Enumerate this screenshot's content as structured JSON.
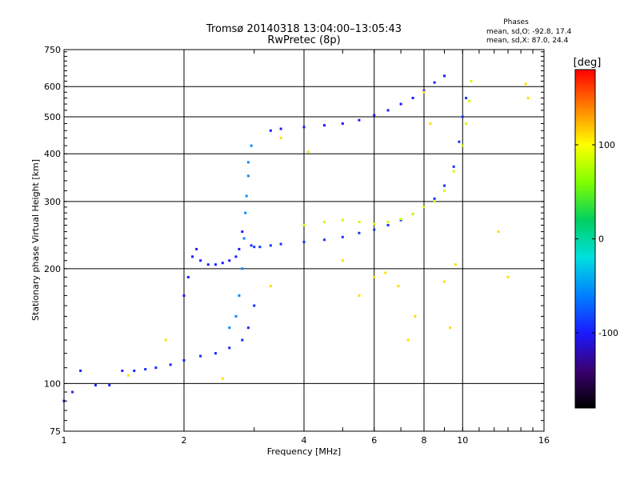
{
  "header": {
    "title_line1": "Tromsø 20140318 13:04:00–13:05:43",
    "title_line2": "RwPretec (8p)",
    "phase_heading": "Phases",
    "phase_o": "mean, sd,O: -92.8, 17.4",
    "phase_x": "mean, sd,X:  87.0, 24.4"
  },
  "colorbar": {
    "unit": "[deg]",
    "tick_labels": [
      "100",
      "0",
      "-100"
    ],
    "tick_values": [
      100,
      0,
      -100
    ],
    "range": [
      -180,
      180
    ],
    "stops": [
      "#000000",
      "#3a0070",
      "#1a1aff",
      "#0080ff",
      "#00e0e0",
      "#00d060",
      "#80ff00",
      "#ffff00",
      "#ff8000",
      "#ff0000"
    ]
  },
  "chart_data": {
    "type": "scatter",
    "xlabel": "Frequency [MHz]",
    "ylabel": "Stationary phase Virtual Height [km]",
    "xscale": "log",
    "yscale": "log",
    "xlim": [
      1,
      16
    ],
    "ylim": [
      75,
      750
    ],
    "x_ticks": [
      1,
      2,
      4,
      6,
      8,
      10,
      16
    ],
    "x_tick_labels": [
      "1",
      "2",
      "4",
      "6",
      "8",
      "10",
      "16"
    ],
    "y_ticks": [
      75,
      100,
      200,
      300,
      400,
      500,
      600,
      750
    ],
    "y_tick_labels": [
      "75",
      "100",
      "200",
      "300",
      "400",
      "500",
      "600",
      "750"
    ],
    "grid": true,
    "series": [
      {
        "x": [
          1.0,
          1.05,
          1.1,
          1.2,
          1.3,
          1.4,
          1.5,
          1.6,
          1.7,
          1.85,
          2.0,
          2.2,
          2.4,
          2.6,
          2.8,
          2.9,
          3.0
        ],
        "y": [
          90,
          95,
          108,
          99,
          99,
          108,
          108,
          109,
          110,
          112,
          115,
          118,
          120,
          124,
          130,
          140,
          160
        ],
        "phase": -95
      },
      {
        "x": [
          2.0,
          2.05,
          2.1,
          2.15,
          2.2,
          2.3,
          2.4,
          2.5,
          2.6,
          2.7,
          2.75,
          2.8
        ],
        "y": [
          170,
          190,
          215,
          225,
          210,
          205,
          205,
          207,
          210,
          215,
          225,
          250
        ],
        "phase": -100
      },
      {
        "x": [
          2.6,
          2.7,
          2.75,
          2.8,
          2.83,
          2.85,
          2.87,
          2.9,
          2.9,
          2.95
        ],
        "y": [
          140,
          150,
          170,
          200,
          240,
          280,
          310,
          350,
          380,
          420
        ],
        "phase": -55
      },
      {
        "x": [
          2.95,
          3.0,
          3.1,
          3.3,
          3.5,
          4.0,
          4.5,
          5.0,
          5.5,
          6.0,
          6.5,
          7.0,
          7.5,
          8.0,
          8.5,
          9.0,
          9.5,
          9.8,
          10.0,
          10.2
        ],
        "y": [
          230,
          228,
          228,
          230,
          232,
          235,
          238,
          242,
          248,
          253,
          260,
          268,
          278,
          290,
          305,
          330,
          370,
          430,
          500,
          560
        ],
        "phase": -90
      },
      {
        "x": [
          4.0,
          4.5,
          5.0,
          5.5,
          6.0,
          6.5,
          7.0,
          7.5,
          8.0,
          8.5,
          9.0,
          9.5,
          10.0,
          10.2,
          10.4,
          10.5
        ],
        "y": [
          260,
          265,
          268,
          265,
          262,
          265,
          270,
          278,
          290,
          300,
          320,
          360,
          420,
          480,
          550,
          620
        ],
        "phase": 85
      },
      {
        "x": [
          3.3,
          3.5,
          4.0,
          4.5,
          5.0,
          5.5,
          6.0,
          6.5,
          7.0,
          7.5,
          8.0,
          8.5,
          9.0
        ],
        "y": [
          460,
          465,
          470,
          475,
          480,
          490,
          505,
          520,
          540,
          560,
          585,
          615,
          640
        ],
        "phase": -100
      },
      {
        "x": [
          1.45,
          1.8,
          2.5,
          3.3,
          3.5,
          4.1,
          5.0,
          5.5,
          6.0,
          6.4,
          6.9,
          7.3,
          7.6,
          8.0,
          8.3,
          9.0,
          9.3,
          9.6,
          12.3,
          13.0,
          14.4,
          14.6
        ],
        "y": [
          105,
          130,
          103,
          180,
          440,
          405,
          210,
          170,
          190,
          195,
          180,
          130,
          150,
          580,
          480,
          185,
          140,
          205,
          250,
          190,
          610,
          560
        ],
        "phase": 110
      }
    ]
  }
}
